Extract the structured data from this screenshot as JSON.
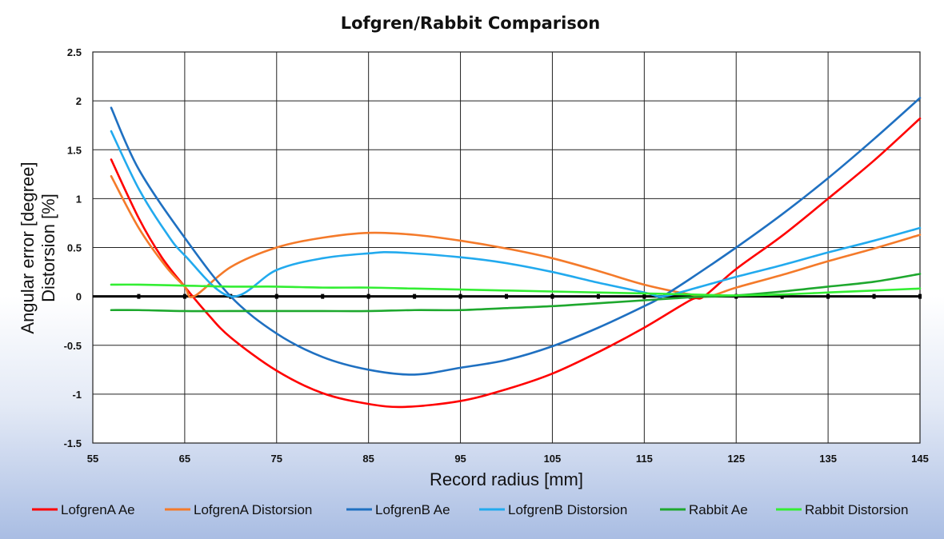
{
  "chart_data": {
    "type": "line",
    "title": "Lofgren/Rabbit Comparison",
    "xlabel": "Record radius [mm]",
    "ylabel": [
      "Angular error [degree]",
      "Distorsion [%]"
    ],
    "xlim": [
      55,
      145
    ],
    "ylim": [
      -1.5,
      2.5
    ],
    "x_ticks": [
      55,
      65,
      75,
      85,
      95,
      105,
      115,
      125,
      135,
      145
    ],
    "y_ticks": [
      2.5,
      2,
      1.5,
      1,
      0.5,
      0,
      -0.5,
      -1,
      -1.5
    ],
    "grid": true,
    "legend_position": "bottom",
    "series": [
      {
        "name": "LofgrenA Ae",
        "color": "#ff0000",
        "x": [
          57,
          60,
          62.5,
          65,
          67.5,
          70,
          75,
          80,
          85,
          89,
          95,
          100,
          105,
          110,
          115,
          120,
          121.5,
          125,
          130,
          135,
          140,
          145
        ],
        "y": [
          1.4,
          0.8,
          0.4,
          0.1,
          -0.18,
          -0.42,
          -0.76,
          -0.99,
          -1.1,
          -1.13,
          -1.07,
          -0.95,
          -0.79,
          -0.57,
          -0.32,
          -0.04,
          0.0,
          0.28,
          0.62,
          1.0,
          1.39,
          1.82
        ]
      },
      {
        "name": "LofgrenA Distorsion",
        "color": "#f47a2a",
        "x": [
          57,
          60,
          63,
          65,
          66,
          70,
          75,
          80,
          85,
          90,
          95,
          100,
          105,
          110,
          115,
          120,
          122,
          125,
          130,
          135,
          140,
          145
        ],
        "y": [
          1.23,
          0.7,
          0.3,
          0.1,
          0.0,
          0.3,
          0.5,
          0.6,
          0.65,
          0.63,
          0.57,
          0.49,
          0.39,
          0.26,
          0.12,
          0.02,
          0.0,
          0.09,
          0.22,
          0.36,
          0.49,
          0.63
        ]
      },
      {
        "name": "LofgrenB Ae",
        "color": "#1f70c1",
        "x": [
          57,
          60,
          65,
          70,
          75,
          80,
          85,
          90,
          95,
          100,
          105,
          110,
          115,
          117,
          120,
          125,
          130,
          135,
          140,
          145
        ],
        "y": [
          1.93,
          1.3,
          0.6,
          0.0,
          -0.38,
          -0.62,
          -0.75,
          -0.8,
          -0.73,
          -0.65,
          -0.51,
          -0.32,
          -0.1,
          0.0,
          0.18,
          0.5,
          0.84,
          1.21,
          1.61,
          2.03
        ]
      },
      {
        "name": "LofgrenB Distorsion",
        "color": "#22aaee",
        "x": [
          57,
          60,
          63,
          65,
          70,
          75,
          80,
          85,
          88,
          95,
          100,
          105,
          110,
          115,
          117,
          120,
          125,
          130,
          135,
          140,
          145
        ],
        "y": [
          1.69,
          1.1,
          0.65,
          0.42,
          0.0,
          0.27,
          0.39,
          0.44,
          0.45,
          0.4,
          0.34,
          0.25,
          0.14,
          0.04,
          0.0,
          0.07,
          0.2,
          0.32,
          0.45,
          0.57,
          0.7
        ]
      },
      {
        "name": "Rabbit Ae",
        "color": "#1ea82e",
        "x": [
          57,
          60,
          65,
          70,
          75,
          80,
          85,
          90,
          95,
          100,
          105,
          110,
          115,
          120,
          125,
          130,
          135,
          140,
          145
        ],
        "y": [
          -0.14,
          -0.14,
          -0.15,
          -0.15,
          -0.15,
          -0.15,
          -0.15,
          -0.14,
          -0.14,
          -0.12,
          -0.1,
          -0.07,
          -0.04,
          -0.01,
          0.01,
          0.05,
          0.1,
          0.15,
          0.23
        ]
      },
      {
        "name": "Rabbit Distorsion",
        "color": "#33ee33",
        "x": [
          57,
          60,
          65,
          70,
          75,
          80,
          85,
          90,
          95,
          100,
          105,
          110,
          115,
          120,
          125,
          130,
          135,
          140,
          145
        ],
        "y": [
          0.12,
          0.12,
          0.11,
          0.1,
          0.1,
          0.09,
          0.09,
          0.08,
          0.07,
          0.06,
          0.05,
          0.04,
          0.03,
          0.02,
          0.01,
          0.02,
          0.04,
          0.06,
          0.08
        ]
      }
    ]
  }
}
